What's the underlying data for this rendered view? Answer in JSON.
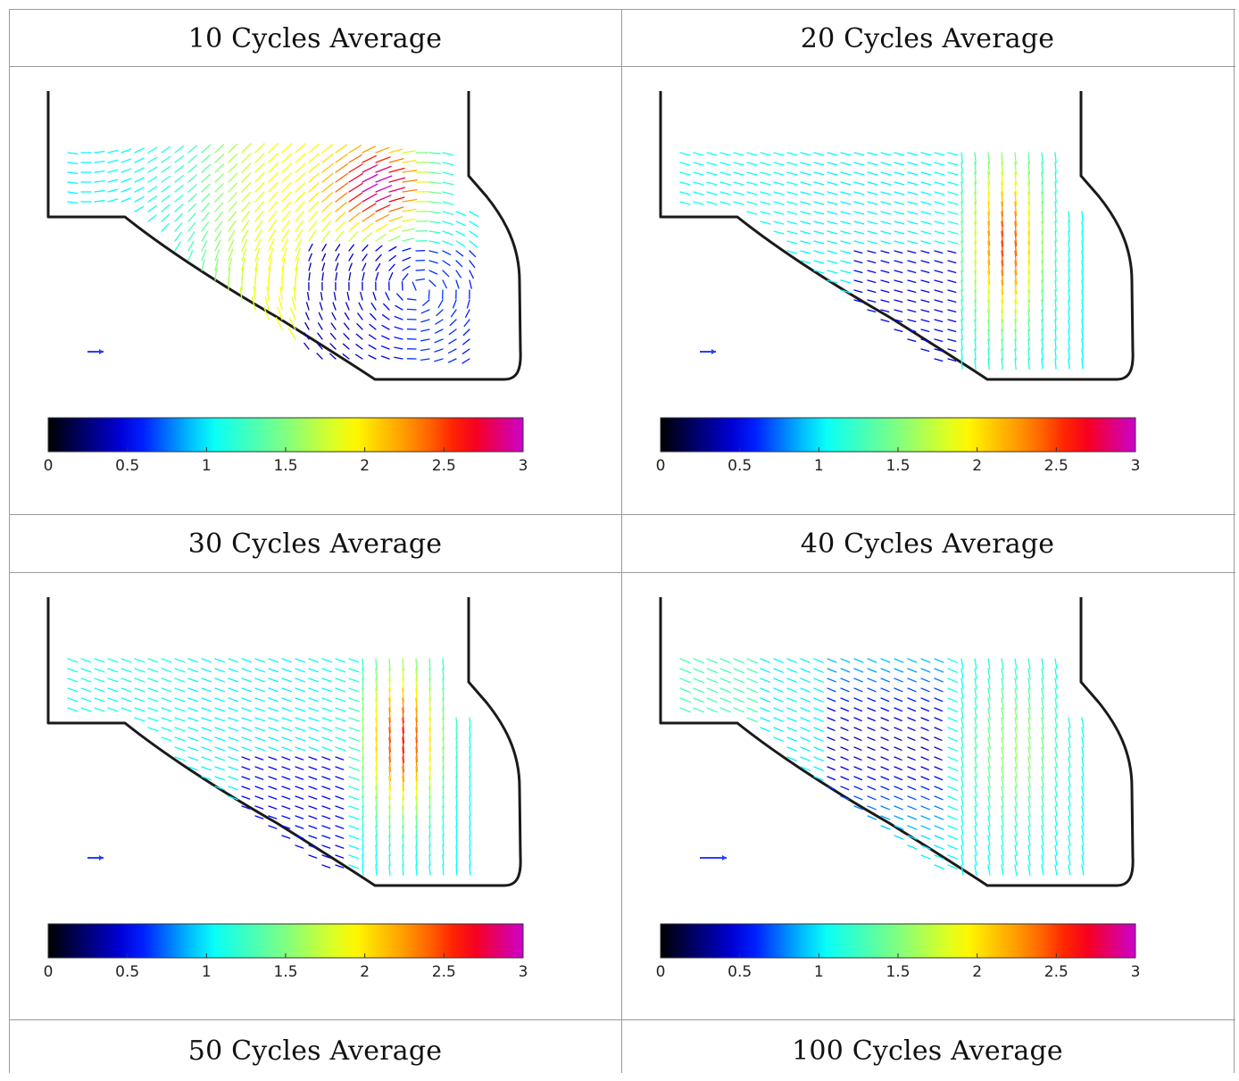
{
  "panels": [
    {
      "title": "10 Cycles Average",
      "preset": "p10"
    },
    {
      "title": "20 Cycles Average",
      "preset": "p20"
    },
    {
      "title": "30 Cycles Average",
      "preset": "p30"
    },
    {
      "title": "40 Cycles Average",
      "preset": "p40"
    },
    {
      "title": "50 Cycles Average"
    },
    {
      "title": "100 Cycles Average"
    }
  ],
  "colorbar": {
    "ticks": [
      "0",
      "0.5",
      "1",
      "1.5",
      "2",
      "2.5",
      "3"
    ],
    "min": 0,
    "max": 3,
    "colormap": "jet"
  }
}
